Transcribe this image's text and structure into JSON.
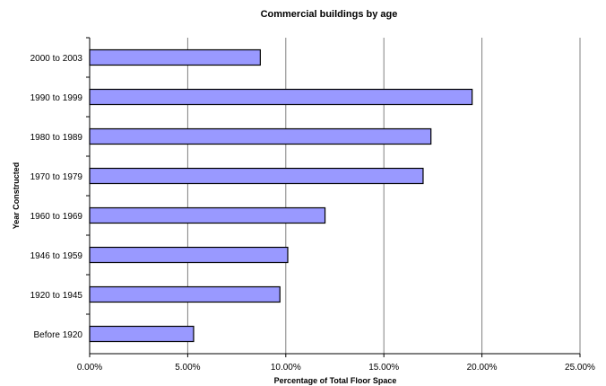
{
  "chart_data": {
    "type": "bar",
    "orientation": "horizontal",
    "title": "Commercial buildings by age",
    "xlabel": "Percentage of Total Floor Space",
    "ylabel": "Year Constructed",
    "categories": [
      "2000 to 2003",
      "1990 to 1999",
      "1980 to 1989",
      "1970 to 1979",
      "1960 to 1969",
      "1946 to 1959",
      "1920 to 1945",
      "Before 1920"
    ],
    "values": [
      8.7,
      19.5,
      17.4,
      17.0,
      12.0,
      10.1,
      9.7,
      5.3
    ],
    "xlim": [
      0,
      25
    ],
    "x_ticks": [
      0,
      5,
      10,
      15,
      20,
      25
    ],
    "x_tick_labels": [
      "0.00%",
      "5.00%",
      "10.00%",
      "15.00%",
      "20.00%",
      "25.00%"
    ],
    "grid": "vertical",
    "legend": "none",
    "colors": {
      "bar_fill": "#9999ff",
      "bar_stroke": "#000000",
      "grid": "#808080",
      "axis": "#000000"
    }
  }
}
